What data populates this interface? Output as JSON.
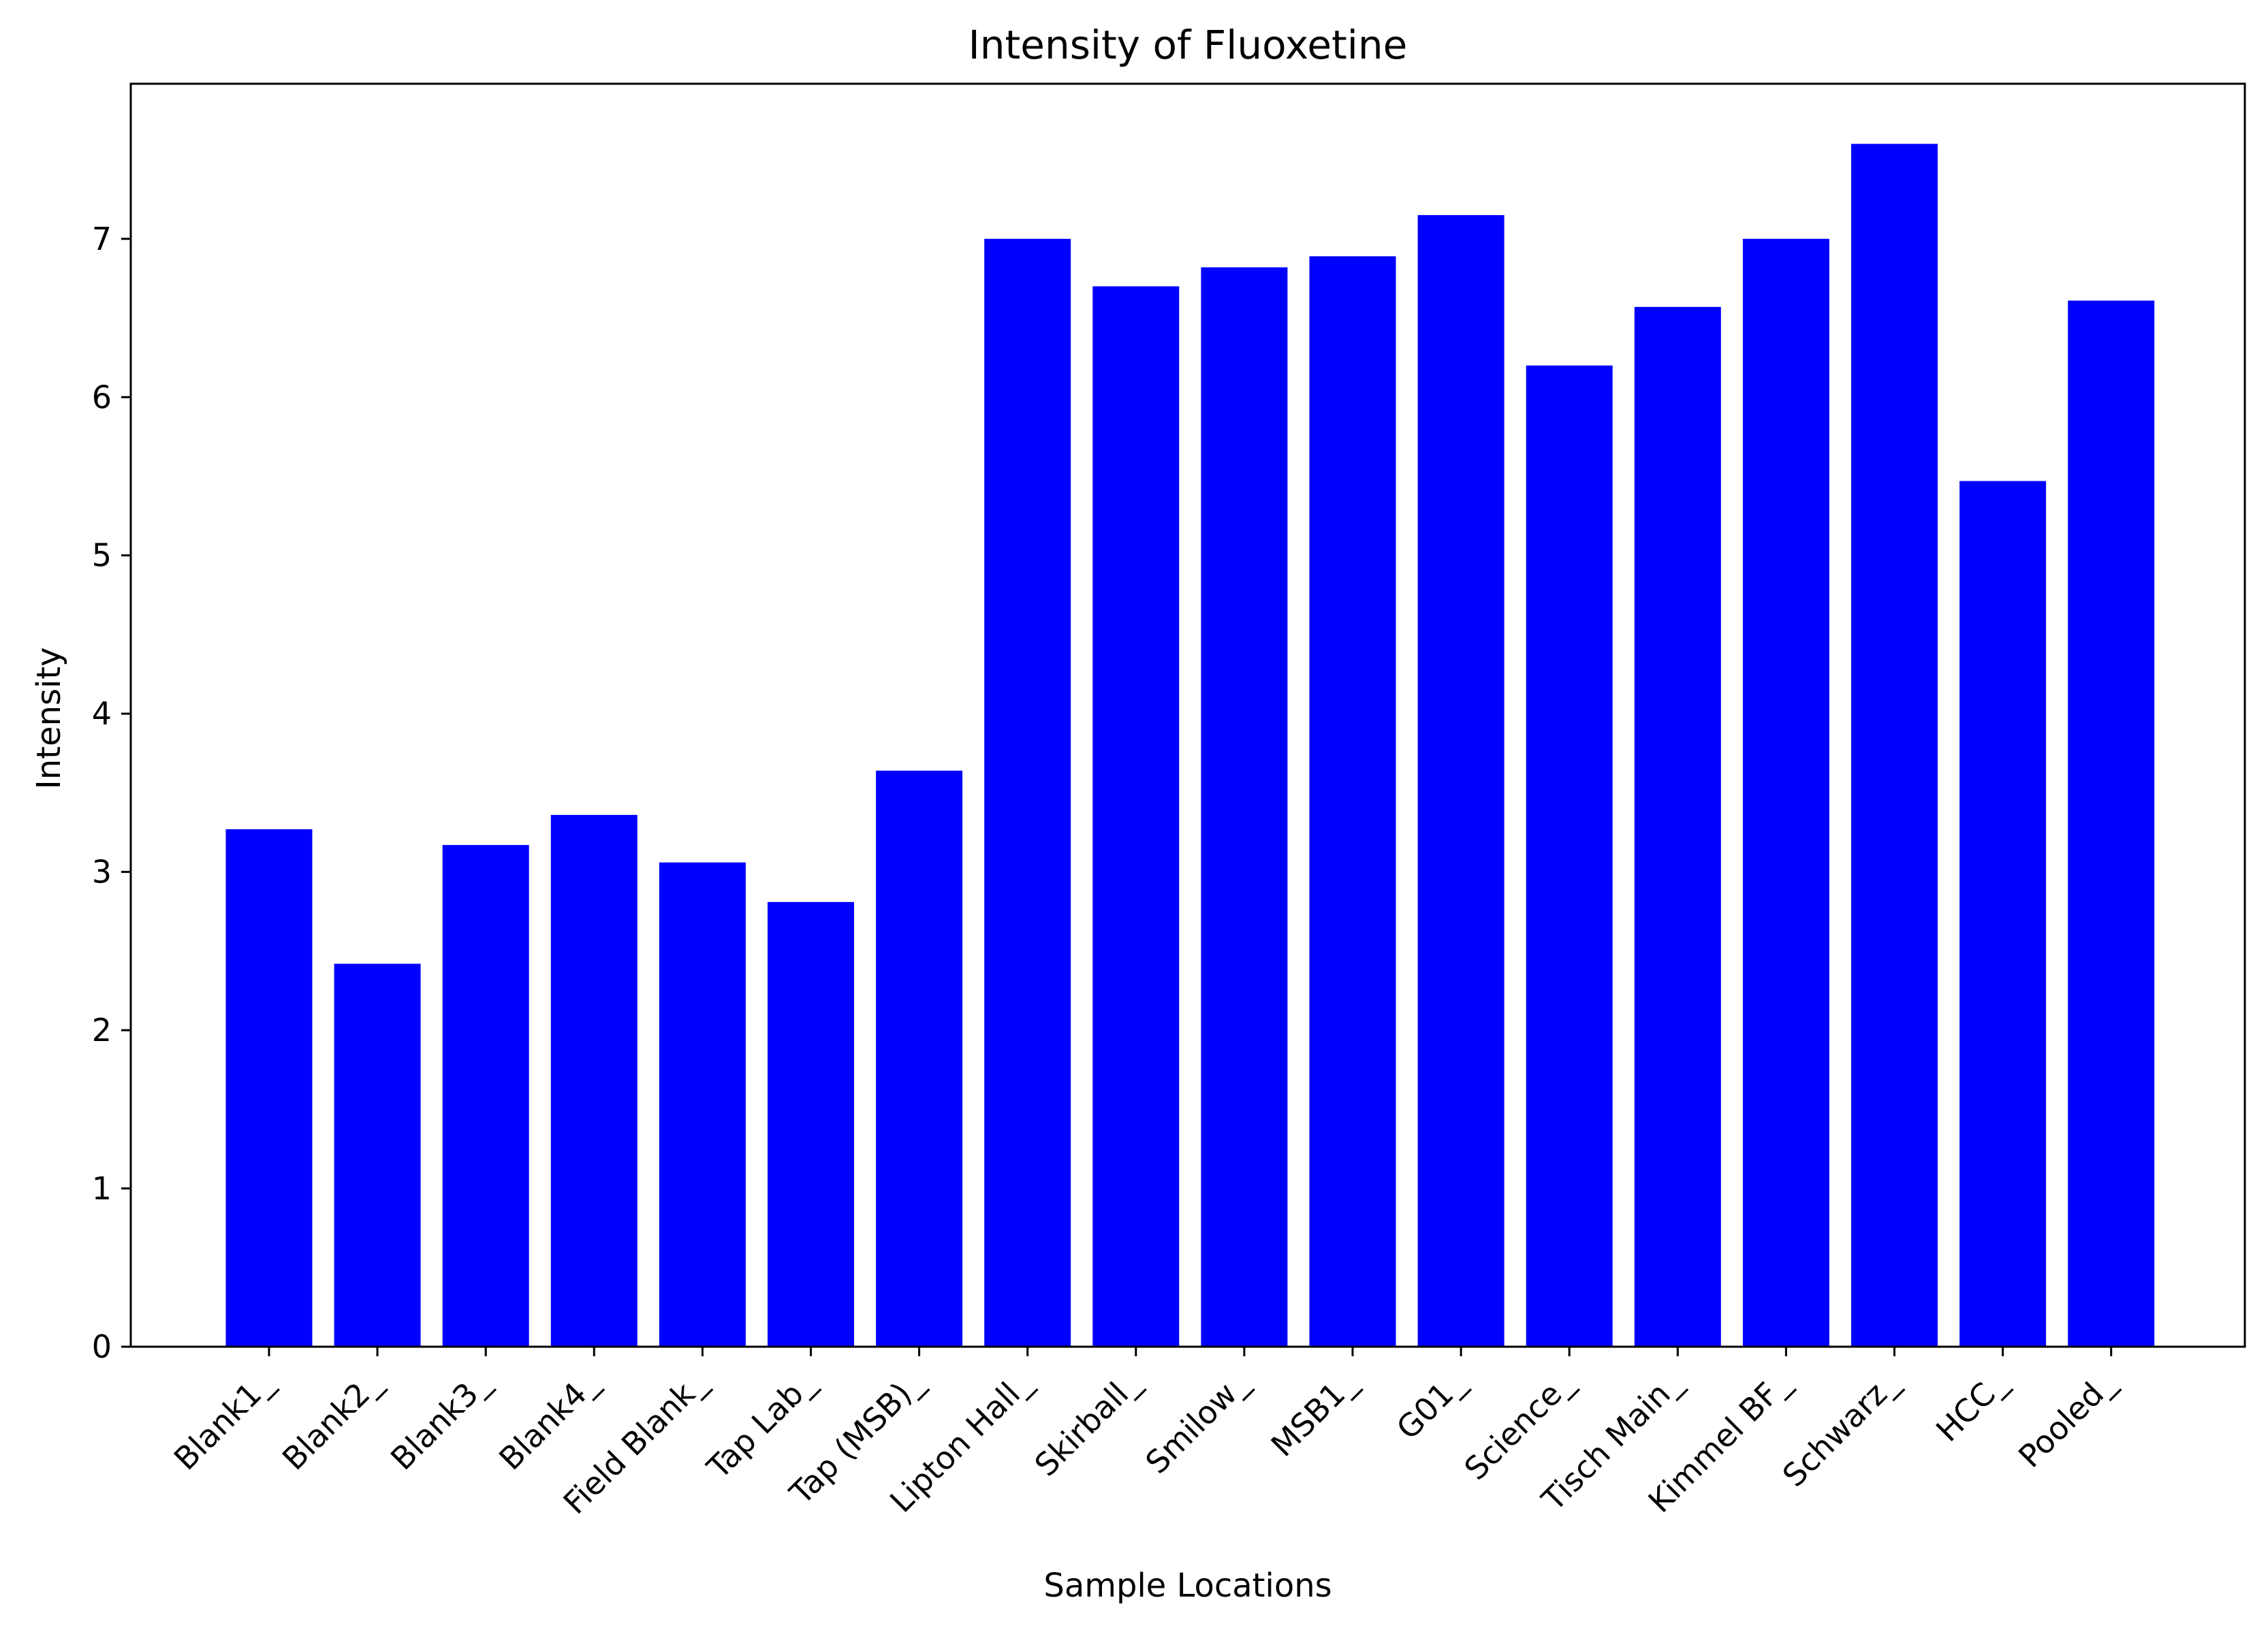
{
  "chart_data": {
    "type": "bar",
    "title": "Intensity of Fluoxetine",
    "xlabel": "Sample Locations",
    "ylabel": "Intensity",
    "categories": [
      "Blank1_",
      "Blank2_",
      "Blank3_",
      "Blank4_",
      "Field Blank_",
      "Tap Lab_",
      "Tap (MSB)_",
      "Lipton Hall_",
      "Skirball_",
      "Smilow_",
      "MSB1_",
      "G01_",
      "Science_",
      "Tisch Main_",
      "Kimmel BF_",
      "Schwarz_",
      "HCC_",
      "Pooled_"
    ],
    "values": [
      3.27,
      2.42,
      3.17,
      3.36,
      3.06,
      2.81,
      3.64,
      7.0,
      6.7,
      6.82,
      6.89,
      7.15,
      6.2,
      6.57,
      7.0,
      7.6,
      5.47,
      6.61
    ],
    "yticks": [
      0,
      1,
      2,
      3,
      4,
      5,
      6,
      7
    ],
    "ylim": [
      0,
      7.98
    ],
    "bar_color": "#0000ff",
    "grid": false,
    "legend": "none"
  }
}
